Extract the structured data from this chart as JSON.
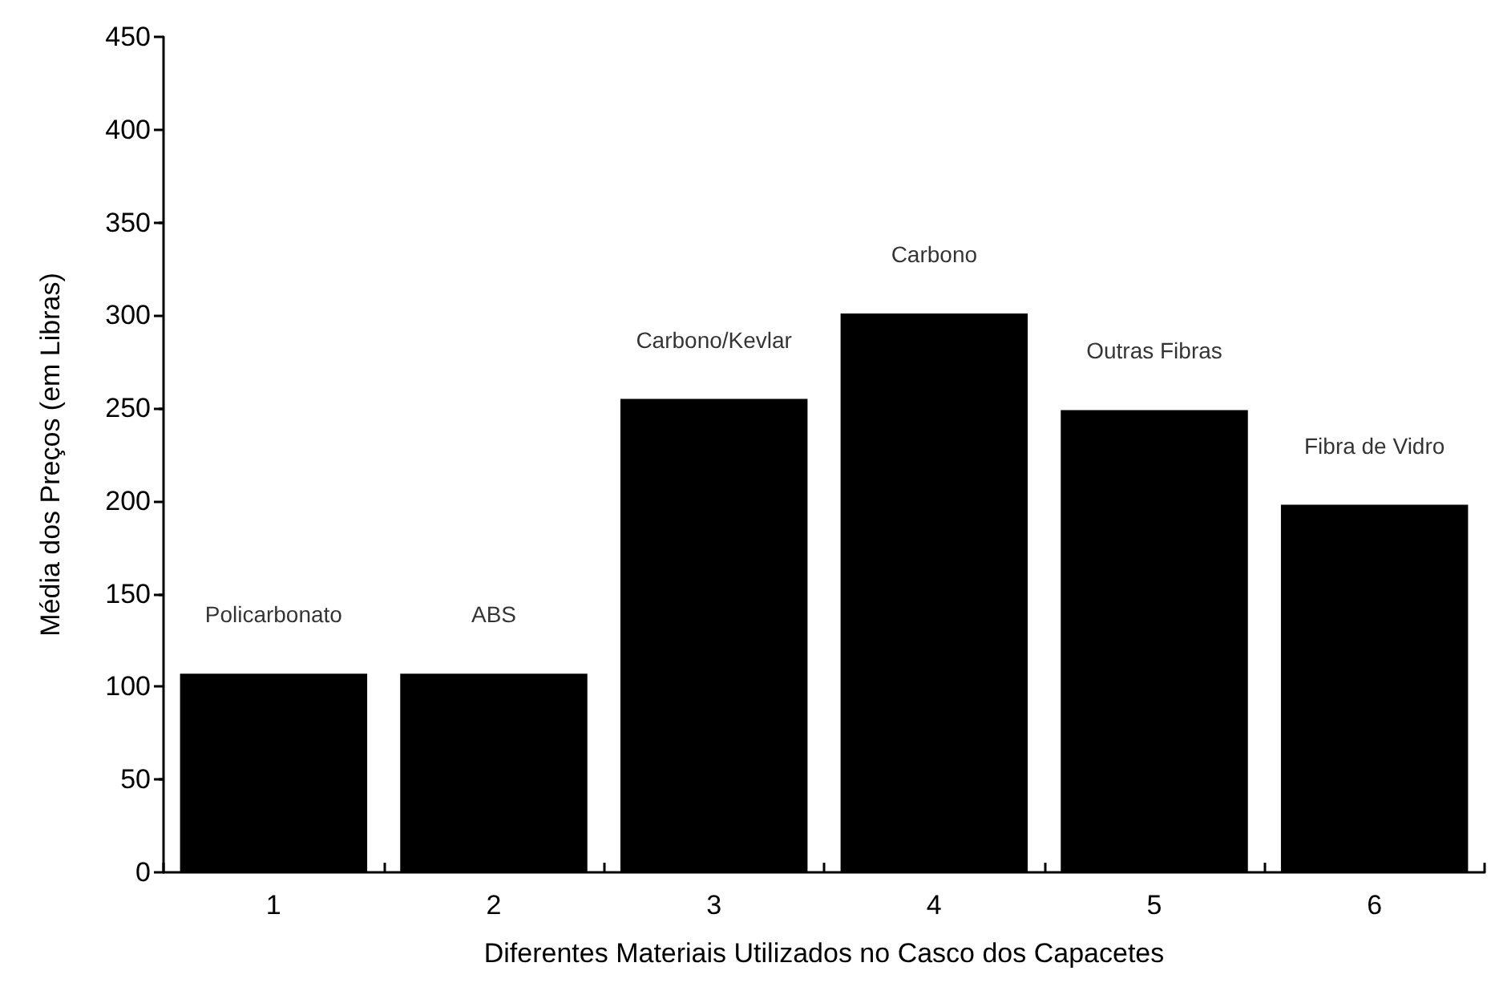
{
  "chart_data": {
    "type": "bar",
    "xlabel": "Diferentes Materiais Utilizados no Casco dos Capacetes",
    "ylabel": "Média dos Preços (em Libras)",
    "categories": [
      "1",
      "2",
      "3",
      "4",
      "5",
      "6"
    ],
    "values": [
      107,
      107,
      255,
      301,
      249,
      198
    ],
    "color": "#000000",
    "ylim": [
      0,
      450
    ],
    "yticks": [
      0,
      50,
      100,
      150,
      200,
      250,
      300,
      350,
      400,
      450
    ],
    "grid": false,
    "annotations": [
      {
        "text": "Policarbonato",
        "x": "1",
        "y": 107
      },
      {
        "text": "ABS",
        "x": "2",
        "y": 107
      },
      {
        "text": "Carbono/Kevlar",
        "x": "3",
        "y": 255
      },
      {
        "text": "Carbono",
        "x": "4",
        "y": 301
      },
      {
        "text": "Outras Fibras",
        "x": "5",
        "y": 249
      },
      {
        "text": "Fibra de Vidro",
        "x": "6",
        "y": 198
      }
    ]
  }
}
